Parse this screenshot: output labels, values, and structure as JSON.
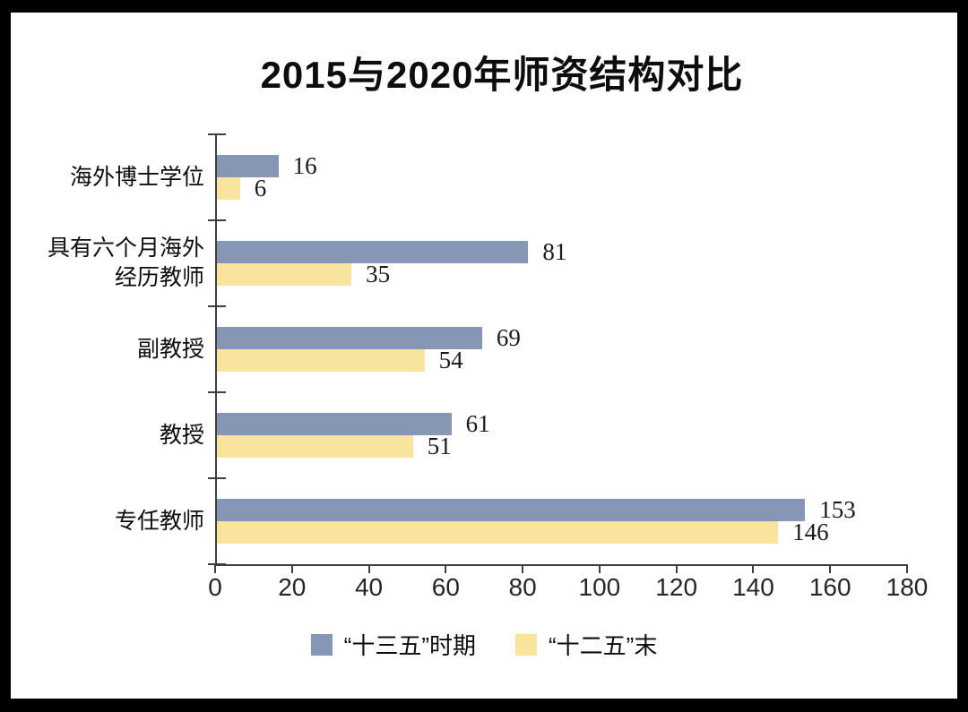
{
  "title": "2015与2020年师资结构对比",
  "chart_data": {
    "type": "bar",
    "orientation": "horizontal",
    "title": "2015与2020年师资结构对比",
    "categories": [
      "海外博士学位",
      "具有六个月海外\n经历教师",
      "副教授",
      "教授",
      "专任教师"
    ],
    "series": [
      {
        "name": "“十三五”时期",
        "color": "#8597B4",
        "values": [
          16,
          81,
          69,
          61,
          153
        ]
      },
      {
        "name": "“十二五”末",
        "color": "#F9E49E",
        "values": [
          6,
          35,
          54,
          51,
          146
        ]
      }
    ],
    "xlim": [
      0,
      180
    ],
    "x_ticks": [
      0,
      20,
      40,
      60,
      80,
      100,
      120,
      140,
      160,
      180
    ],
    "grid": false,
    "value_labels_shown": true,
    "legend_position": "bottom"
  },
  "colors": {
    "axis": "#3f3f3f",
    "bar_series_1": "#8597B4",
    "bar_series_2": "#F9E49E",
    "frame": "#000000",
    "background": "#ffffff"
  }
}
